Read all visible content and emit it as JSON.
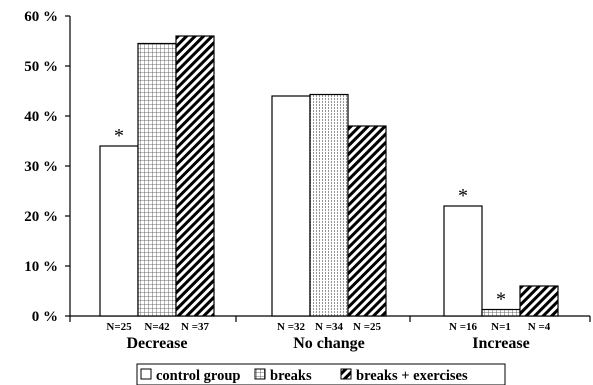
{
  "chart_data": {
    "type": "bar",
    "categories": [
      "Decrease",
      "No change",
      "Increase"
    ],
    "series": [
      {
        "name": "control group",
        "pattern": "plain",
        "values": [
          34,
          44,
          22
        ],
        "n_labels": [
          "N=25",
          "N =32",
          "N =16"
        ],
        "significant": [
          true,
          false,
          true
        ]
      },
      {
        "name": "breaks",
        "pattern": "grid",
        "values": [
          54.5,
          44.3,
          1.3
        ],
        "n_labels": [
          "N=42",
          "N =34",
          "N=1"
        ],
        "significant": [
          false,
          false,
          true
        ]
      },
      {
        "name": "breaks + exercises",
        "pattern": "diagonal",
        "values": [
          56,
          38,
          6
        ],
        "n_labels": [
          "N =37",
          "N =25",
          "N =4"
        ],
        "significant": [
          false,
          false,
          false
        ]
      }
    ],
    "y_ticks": [
      "0 %",
      "10 %",
      "20 %",
      "30 %",
      "40 %",
      "50 %",
      "60 %"
    ],
    "ylim": [
      0,
      60
    ],
    "significance_marker": "*",
    "legend_position": "bottom",
    "grid": false
  }
}
